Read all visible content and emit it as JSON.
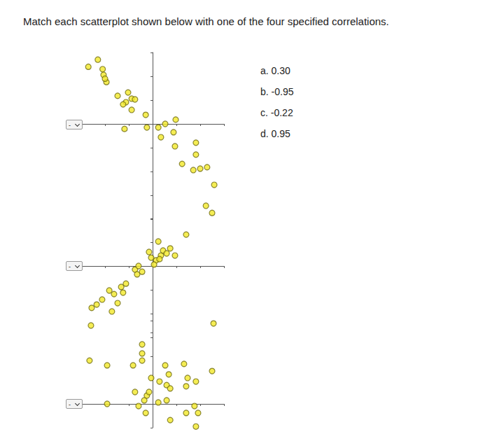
{
  "question": "Match each scatterplot shown below with one of the four specified correlations.",
  "dropdown": "-",
  "choices": [
    "a. 0.30",
    "b. -0.95",
    "c. -0.22",
    "d. 0.95"
  ],
  "chart_data": [
    {
      "type": "scatter",
      "color": "#f2e829",
      "marker": "circle",
      "grid": false,
      "tick_labels": false,
      "xlim": [
        -3,
        3
      ],
      "xticks": [
        -3,
        -2,
        -1,
        0,
        1,
        2,
        3
      ],
      "ylim": [
        -4,
        3
      ],
      "yticks": [
        -4,
        -3,
        -2,
        -1,
        0,
        1,
        2,
        3
      ],
      "x": [
        -2.7,
        -2.3,
        -2.1,
        -2.06,
        -1.94,
        -2.0,
        -1.47,
        -1.03,
        -1.12,
        -0.88,
        -0.74,
        -1.24,
        -0.88,
        -0.29,
        -1.18,
        -0.24,
        0.24,
        0.53,
        0.97,
        0.88,
        0.35,
        0.94,
        1.82,
        1.82,
        1.24,
        1.71,
        2.0,
        2.29,
        2.59,
        2.24,
        2.5
      ],
      "y": [
        2.4,
        2.7,
        2.3,
        2.06,
        1.76,
        1.9,
        1.18,
        1.32,
        0.91,
        1.06,
        1.03,
        0.82,
        0.59,
        0.38,
        -0.21,
        -0.15,
        -0.15,
        0,
        0.18,
        -0.35,
        -0.56,
        -0.94,
        -0.79,
        -1.29,
        -1.68,
        -1.94,
        -1.88,
        -1.82,
        -2.56,
        -3.44,
        -3.74
      ]
    },
    {
      "type": "scatter",
      "color": "#f2e829",
      "marker": "circle",
      "grid": false,
      "tick_labels": false,
      "xlim": [
        -3,
        3
      ],
      "xticks": [
        -3,
        -2,
        -1,
        0,
        1,
        2,
        3
      ],
      "ylim": [
        -3,
        2
      ],
      "yticks": [
        -3,
        -2,
        -1,
        0,
        1,
        2
      ],
      "x": [
        -2.59,
        -2.56,
        -2.35,
        -2.12,
        -1.82,
        -1.62,
        -1.71,
        -1.47,
        -1.32,
        -1.12,
        -1.24,
        -0.74,
        -0.65,
        -0.59,
        -0.44,
        -0.15,
        -0.06,
        0.15,
        0.24,
        0.35,
        0.44,
        0.59,
        0.74,
        0.94,
        1.41,
        0.06,
        0.29
      ],
      "y": [
        -2.5,
        -1.76,
        -1.62,
        -1.41,
        -1.03,
        -1.18,
        -1.91,
        -1.56,
        -0.88,
        -0.74,
        -1.12,
        -0.15,
        -0.35,
        0,
        -0.24,
        0.59,
        0.35,
        0.24,
        1.03,
        0.44,
        0.65,
        0.53,
        0.74,
        0.44,
        1.32,
        0.06,
        0.29
      ]
    },
    {
      "type": "scatter",
      "color": "#f2e829",
      "marker": "circle",
      "grid": false,
      "tick_labels": false,
      "xlim": [
        -3,
        3
      ],
      "xticks": [
        -3,
        -2,
        -1,
        0,
        1,
        2,
        3
      ],
      "ylim": [
        -1,
        3.5
      ],
      "yticks": [
        -1,
        0,
        1,
        2,
        3
      ],
      "x": [
        -2.65,
        -1.91,
        -1.91,
        -0.82,
        -0.44,
        -0.44,
        -0.44,
        -0.06,
        -0.74,
        -0.59,
        -0.35,
        -0.24,
        -0.15,
        -0.29,
        0.29,
        0.53,
        0.68,
        0.59,
        0.74,
        0.24,
        0.74,
        0.59,
        1.32,
        1.47,
        1.41,
        1.82,
        1.76,
        1.91,
        1.41,
        2.5,
        2.56,
        1.82
      ],
      "y": [
        1.82,
        1.62,
        0,
        1.62,
        2.5,
        2.12,
        1.82,
        1.09,
        0.5,
        -0.09,
        0.15,
        0.35,
        0.5,
        -0.38,
        0.94,
        1.62,
        1.24,
        0.79,
        0.65,
        0.06,
        -0.68,
        0.15,
        1.68,
        1.09,
        0.74,
        0.94,
        -0.09,
        -0.38,
        -0.38,
        1.38,
        3.38,
        -0.95
      ]
    }
  ]
}
